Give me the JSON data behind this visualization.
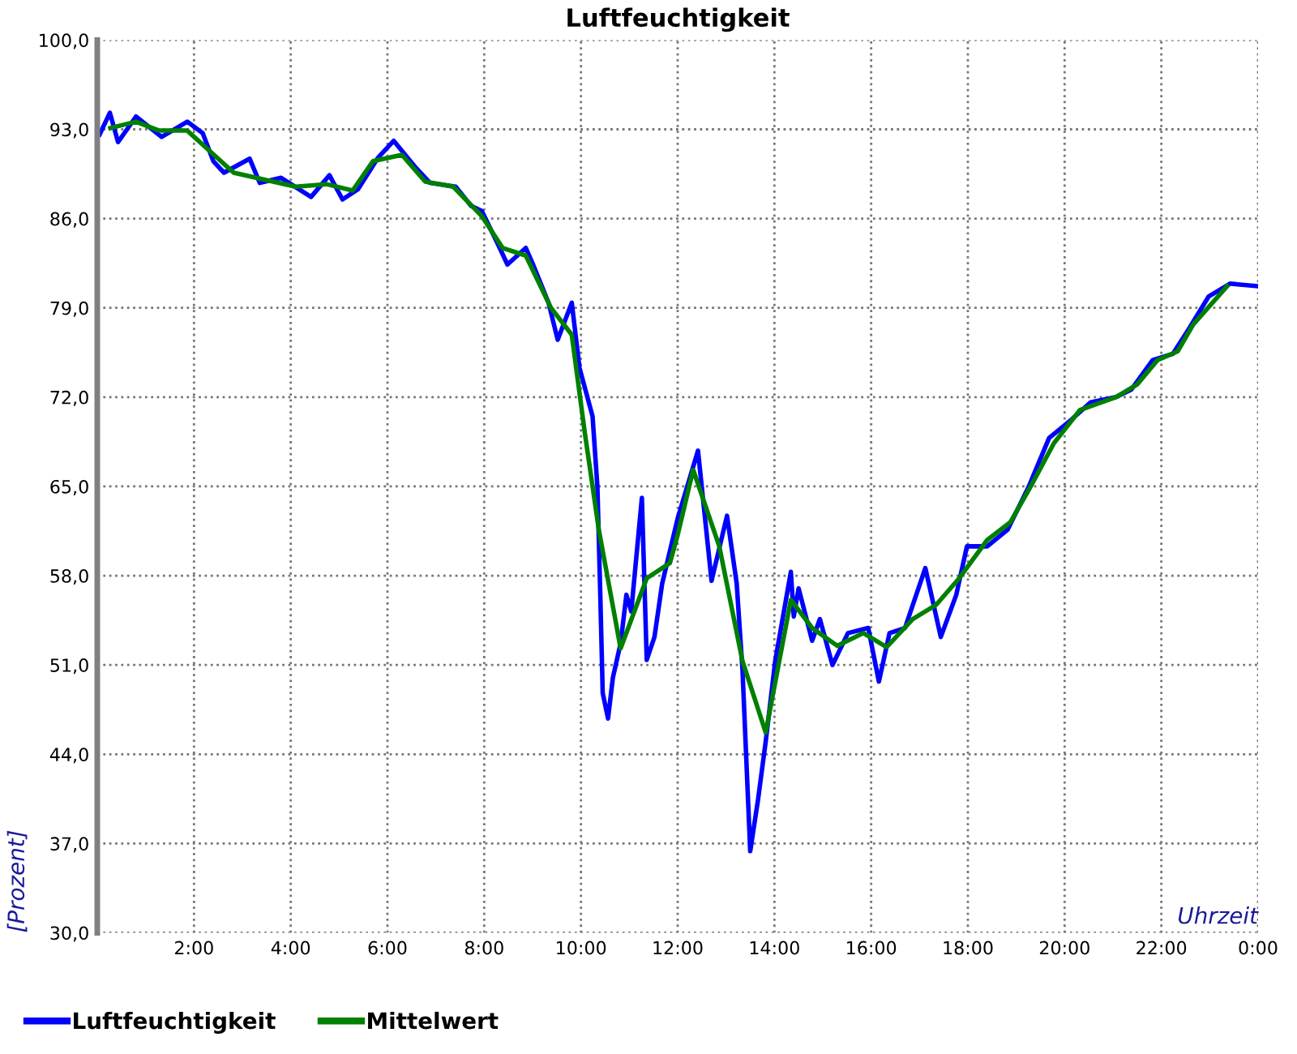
{
  "chart_data": {
    "type": "line",
    "title": "Luftfeuchtigkeit",
    "xlabel": "Uhrzeit",
    "ylabel": "[Prozent]",
    "xlim": [
      0,
      24
    ],
    "ylim": [
      30,
      100
    ],
    "xticks": [
      {
        "value": 0,
        "label": null
      },
      {
        "value": 2,
        "label": "2:00"
      },
      {
        "value": 4,
        "label": "4:00"
      },
      {
        "value": 6,
        "label": "6:00"
      },
      {
        "value": 8,
        "label": "8:00"
      },
      {
        "value": 10,
        "label": "10:00"
      },
      {
        "value": 12,
        "label": "12:00"
      },
      {
        "value": 14,
        "label": "14:00"
      },
      {
        "value": 16,
        "label": "16:00"
      },
      {
        "value": 18,
        "label": "18:00"
      },
      {
        "value": 20,
        "label": "20:00"
      },
      {
        "value": 22,
        "label": "22:00"
      },
      {
        "value": 24,
        "label": "0:00"
      }
    ],
    "yticks": [
      {
        "value": 30,
        "label": "30,0"
      },
      {
        "value": 37,
        "label": "37,0"
      },
      {
        "value": 44,
        "label": "44,0"
      },
      {
        "value": 51,
        "label": "51,0"
      },
      {
        "value": 58,
        "label": "58,0"
      },
      {
        "value": 65,
        "label": "65,0"
      },
      {
        "value": 72,
        "label": "72,0"
      },
      {
        "value": 79,
        "label": "79,0"
      },
      {
        "value": 86,
        "label": "86,0"
      },
      {
        "value": 93,
        "label": "93,0"
      },
      {
        "value": 100,
        "label": "100,0"
      }
    ],
    "grid": true,
    "legend": "bottom left",
    "marker": "none",
    "line_style": "solid",
    "series": [
      {
        "name": "Luftfeuchtigkeit",
        "color": "#0000ff",
        "x": [
          0.05,
          0.26,
          0.43,
          0.8,
          1.33,
          1.86,
          2.18,
          2.4,
          2.62,
          3.15,
          3.36,
          3.8,
          4.42,
          4.8,
          5.07,
          5.39,
          5.81,
          6.13,
          6.56,
          6.88,
          7.41,
          7.73,
          7.95,
          8.27,
          8.48,
          8.86,
          9.01,
          9.33,
          9.52,
          9.81,
          9.97,
          10.24,
          10.34,
          10.4,
          10.45,
          10.56,
          10.66,
          10.82,
          10.94,
          11.04,
          11.26,
          11.36,
          11.52,
          11.68,
          12.0,
          12.42,
          12.7,
          13.02,
          13.22,
          13.34,
          13.5,
          13.66,
          13.82,
          14.02,
          14.34,
          14.4,
          14.5,
          14.78,
          14.94,
          15.2,
          15.52,
          15.94,
          16.16,
          16.38,
          16.7,
          17.12,
          17.44,
          17.76,
          17.98,
          18.4,
          18.82,
          19.26,
          19.68,
          20.1,
          20.54,
          21.06,
          21.38,
          21.82,
          22.24,
          22.56,
          22.98,
          23.42,
          24.0
        ],
        "values": [
          92.6,
          94.3,
          92.0,
          94.0,
          92.4,
          93.6,
          92.7,
          90.5,
          89.6,
          90.7,
          88.8,
          89.2,
          87.7,
          89.4,
          87.5,
          88.3,
          90.8,
          92.1,
          90.1,
          88.8,
          88.5,
          87.0,
          86.6,
          84.1,
          82.4,
          83.7,
          82.4,
          79.4,
          76.5,
          79.4,
          74.3,
          70.5,
          65.0,
          56.5,
          48.8,
          46.8,
          50.0,
          52.7,
          56.5,
          55.2,
          64.1,
          51.4,
          53.2,
          57.4,
          62.5,
          67.8,
          57.6,
          62.7,
          57.4,
          50.6,
          36.4,
          40.4,
          45.0,
          51.4,
          58.3,
          54.8,
          57.0,
          52.9,
          54.6,
          51.0,
          53.5,
          53.9,
          49.7,
          53.5,
          53.9,
          58.6,
          53.2,
          56.5,
          60.3,
          60.3,
          61.6,
          65.0,
          68.8,
          70.1,
          71.6,
          72.0,
          72.6,
          74.9,
          75.4,
          77.3,
          79.9,
          80.9,
          80.7
        ]
      },
      {
        "name": "Mittelwert",
        "color": "#008000",
        "x": [
          0.27,
          0.8,
          1.28,
          1.86,
          2.82,
          4.1,
          4.74,
          5.28,
          5.7,
          6.3,
          6.78,
          7.36,
          7.95,
          8.38,
          8.86,
          9.38,
          9.81,
          10.08,
          10.37,
          10.82,
          11.36,
          11.84,
          12.0,
          12.32,
          12.86,
          13.34,
          13.82,
          14.34,
          14.78,
          15.3,
          15.84,
          16.32,
          16.86,
          17.34,
          17.82,
          18.4,
          18.88,
          19.3,
          19.78,
          20.32,
          21.06,
          21.5,
          21.92,
          22.34,
          22.66,
          23.36
        ],
        "values": [
          93.1,
          93.6,
          92.9,
          92.9,
          89.6,
          88.5,
          88.7,
          88.2,
          90.5,
          91.0,
          88.9,
          88.5,
          86.2,
          83.7,
          83.1,
          79.0,
          76.9,
          69.2,
          61.6,
          52.3,
          57.8,
          59.0,
          61.2,
          66.3,
          60.3,
          51.3,
          45.7,
          56.1,
          53.9,
          52.5,
          53.5,
          52.4,
          54.6,
          55.7,
          57.8,
          60.8,
          62.2,
          65.0,
          68.4,
          71.0,
          72.0,
          73.0,
          74.9,
          75.6,
          77.7,
          80.7
        ]
      }
    ]
  }
}
